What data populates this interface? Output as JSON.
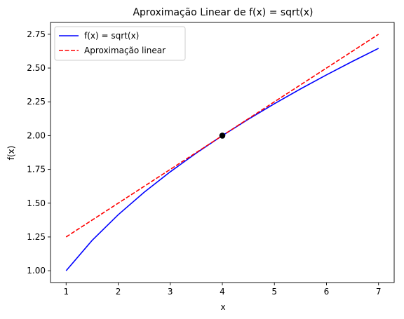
{
  "chart_data": {
    "type": "line",
    "title": "Aproximação Linear de f(x) = sqrt(x)",
    "xlabel": "x",
    "ylabel": "f(x)",
    "xlim": [
      0.7,
      7.3
    ],
    "ylim": [
      0.9125,
      2.8375
    ],
    "x_ticks": [
      1,
      2,
      3,
      4,
      5,
      6,
      7
    ],
    "y_ticks": [
      1.0,
      1.25,
      1.5,
      1.75,
      2.0,
      2.25,
      2.5,
      2.75
    ],
    "y_tick_labels": [
      "1.00",
      "1.25",
      "1.50",
      "1.75",
      "2.00",
      "2.25",
      "2.50",
      "2.75"
    ],
    "grid": false,
    "legend_position": "upper-left",
    "series": [
      {
        "name": "f(x) = sqrt(x)",
        "color": "#0000ff",
        "style": "solid",
        "x": [
          1,
          1.5,
          2,
          2.5,
          3,
          3.5,
          4,
          4.5,
          5,
          5.5,
          6,
          6.5,
          7
        ],
        "y": [
          1.0,
          1.2247,
          1.4142,
          1.5811,
          1.7321,
          1.8708,
          2.0,
          2.1213,
          2.2361,
          2.3452,
          2.4495,
          2.5495,
          2.6458
        ]
      },
      {
        "name": "Aproximação linear",
        "color": "#ff0000",
        "style": "dashed",
        "x": [
          1,
          7
        ],
        "y": [
          1.25,
          2.75
        ]
      }
    ],
    "points": [
      {
        "x": 4,
        "y": 2.0,
        "color": "#000000"
      }
    ]
  }
}
